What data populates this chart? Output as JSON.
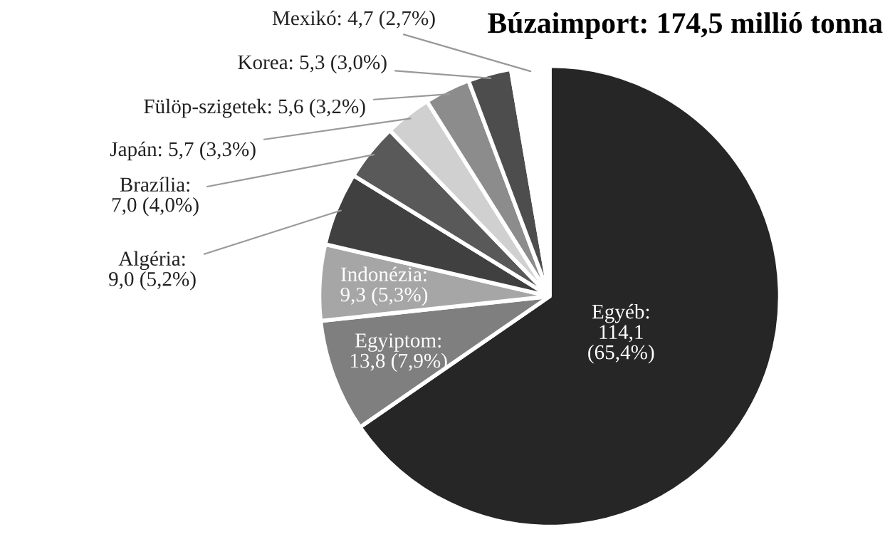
{
  "chart_data": {
    "type": "pie",
    "title": "Búzaimport: 174,5 millió tonna",
    "categories": [
      "Egyéb",
      "Egyiptom",
      "Indonézia",
      "Algéria",
      "Brazília",
      "Japán",
      "Fülöp-szigetek",
      "Korea",
      "Mexikó"
    ],
    "values": [
      114.1,
      13.8,
      9.3,
      9.0,
      7.0,
      5.7,
      5.6,
      5.3,
      4.7
    ],
    "value_labels": [
      ":\n114,1\n(65,4%)",
      ":\n13,8 (7,9%)",
      ":\n9,3 (5,3%)",
      ":\n9,0 (5,2%)",
      ":\n7,0 (4,0%)",
      "5,7 (3,3%)",
      "5,6 (3,2%)",
      "5,3 (3,0%)",
      "4,7 (2,7%)"
    ],
    "colors": [
      "#262626",
      "#7f7f7f",
      "#a6a6a6",
      "#404040",
      "#595959",
      "#d0d0d0",
      "#8c8c8c",
      "#4d4d4d",
      "#ffffff"
    ]
  }
}
